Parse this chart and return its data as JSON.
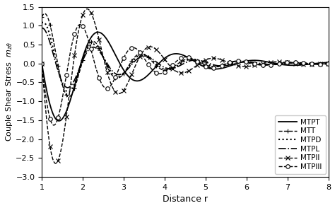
{
  "xlabel": "Distance r",
  "ylabel": "Couple Shear Stress  $m_{z\\theta}$",
  "xlim": [
    1,
    8
  ],
  "ylim": [
    -3,
    1.5
  ],
  "yticks": [
    -3,
    -2.5,
    -2,
    -1.5,
    -1,
    -0.5,
    0,
    0.5,
    1,
    1.5
  ],
  "xticks": [
    1,
    2,
    3,
    4,
    5,
    6,
    7,
    8
  ],
  "legend_labels": [
    "MTPT",
    "MTT",
    "MTPD",
    "MTPL",
    "MTPII",
    "MTPIII"
  ],
  "figsize": [
    4.74,
    2.94
  ],
  "dpi": 100
}
